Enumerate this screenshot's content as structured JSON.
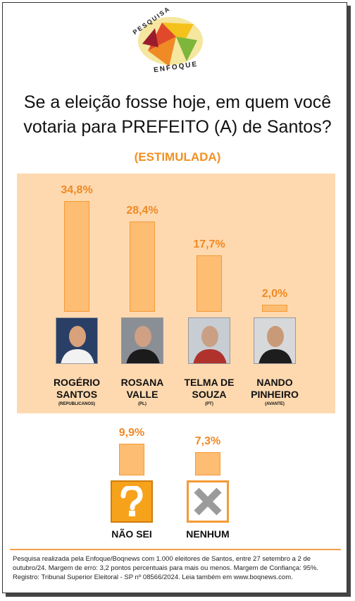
{
  "logo": {
    "top_word": "PESQUISA",
    "bottom_word": "ENFOQUE"
  },
  "title_line1": "Se a eleição fosse hoje, em quem você",
  "title_line2": "votaria para PREFEITO (A) de Santos?",
  "subtitle": "(ESTIMULADA)",
  "colors": {
    "bar_fill": "#fdbd72",
    "bar_border": "#f59a36",
    "panel": "#fed9b0",
    "accent": "#f08a24"
  },
  "chart_data": [
    {
      "type": "bar",
      "categories": [
        "ROGÉRIO SANTOS",
        "ROSANA VALLE",
        "TELMA DE SOUZA",
        "NANDO PINHEIRO"
      ],
      "values": [
        34.8,
        28.4,
        17.7,
        2.0
      ],
      "value_labels": [
        "34,8%",
        "28,4%",
        "17,7%",
        "2,0%"
      ],
      "name_lines": [
        [
          "ROGÉRIO",
          "SANTOS"
        ],
        [
          "ROSANA",
          "VALLE"
        ],
        [
          "TELMA DE",
          "SOUZA"
        ],
        [
          "NANDO",
          "PINHEIRO"
        ]
      ],
      "parties": [
        "(REPUBLICANOS)",
        "(PL)",
        "(PT)",
        "(AVANTE)"
      ]
    },
    {
      "type": "bar",
      "categories": [
        "NÃO SEI",
        "NENHUM"
      ],
      "values": [
        9.9,
        7.3
      ],
      "value_labels": [
        "9,9%",
        "7,3%"
      ]
    }
  ],
  "icons": {
    "dont_know": "question-mark-icon",
    "none": "x-mark-icon"
  },
  "footer": "Pesquisa realizada pela Enfoque/Boqnews com 1.000 eleitores de Santos, entre 27 setembro a 2 de outubro/24. Margem de erro: 3,2 pontos percentuais para mais ou menos. Margem de Confiança: 95%. Registro: Tribunal Superior Eleitoral - SP nº 08566/2024. Leia também em www.boqnews.com."
}
